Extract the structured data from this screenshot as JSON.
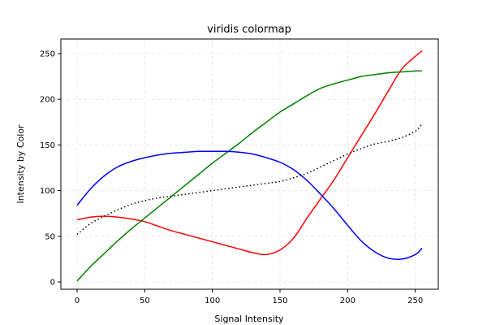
{
  "chart_data": {
    "type": "line",
    "title": "viridis colormap",
    "xlabel": "Signal Intensity",
    "ylabel": "Intensity by Color",
    "xlim": [
      -12,
      267
    ],
    "ylim": [
      -8,
      266
    ],
    "xticks": [
      0,
      50,
      100,
      150,
      200,
      250
    ],
    "yticks": [
      0,
      50,
      100,
      150,
      200,
      250
    ],
    "grid": true,
    "x": [
      0,
      10,
      20,
      30,
      40,
      50,
      60,
      70,
      80,
      90,
      100,
      110,
      120,
      130,
      140,
      150,
      160,
      170,
      180,
      190,
      200,
      210,
      220,
      230,
      240,
      250,
      255
    ],
    "series": [
      {
        "color": "#ff0000",
        "linestyle": "solid",
        "values": [
          68,
          71,
          72,
          71,
          69,
          66,
          61,
          56,
          52,
          48,
          44,
          40,
          36,
          32,
          30,
          35,
          48,
          70,
          91,
          112,
          136,
          160,
          184,
          209,
          233,
          247,
          253
        ]
      },
      {
        "color": "#008000",
        "linestyle": "solid",
        "values": [
          1,
          17,
          31,
          45,
          58,
          70,
          82,
          94,
          106,
          118,
          130,
          141,
          152,
          164,
          175,
          186,
          195,
          204,
          212,
          217,
          221,
          225,
          227,
          229,
          230,
          231,
          231
        ]
      },
      {
        "color": "#0000ff",
        "linestyle": "solid",
        "values": [
          84,
          102,
          116,
          126,
          132,
          136,
          139,
          141,
          142,
          143,
          143,
          143,
          142,
          140,
          136,
          131,
          123,
          111,
          96,
          80,
          62,
          45,
          33,
          26,
          25,
          30,
          37
        ]
      },
      {
        "color": "#000000",
        "linestyle": "dotted",
        "values": [
          52,
          64,
          72,
          79,
          85,
          89,
          92,
          94,
          96,
          98,
          100,
          102,
          104,
          106,
          108,
          110,
          114,
          119,
          126,
          133,
          140,
          146,
          151,
          154,
          158,
          165,
          173
        ]
      }
    ]
  }
}
